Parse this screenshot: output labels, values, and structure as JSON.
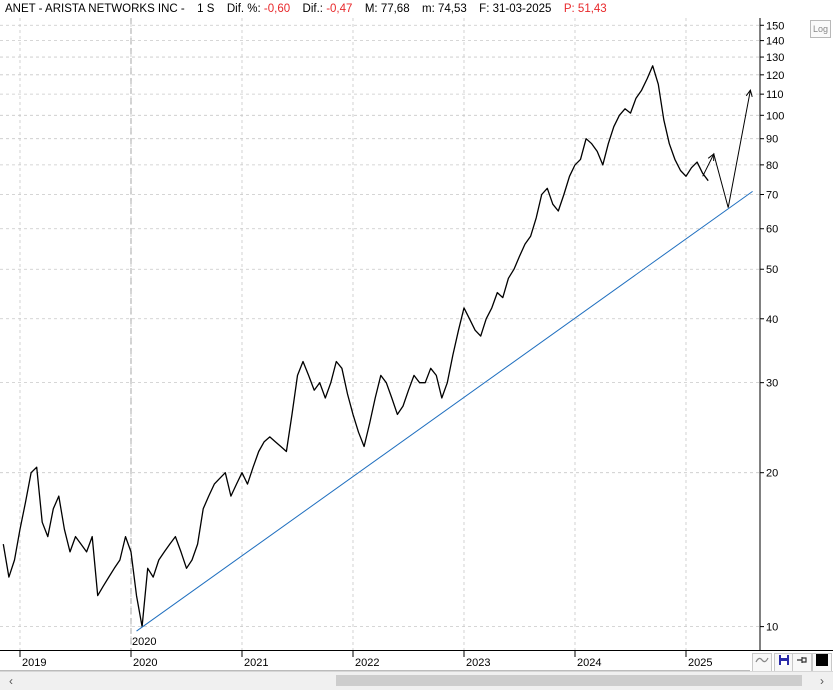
{
  "header": {
    "symbol": "ANET - ARISTA NETWORKS INC -",
    "period": "1 S",
    "dif_pct_label": "Dif. %:",
    "dif_pct_value": "-0,60",
    "dif_label": "Dif.:",
    "dif_value": "-0,47",
    "max_label": "M:",
    "max_value": "77,68",
    "min_label": "m:",
    "min_value": "74,53",
    "date_label": "F:",
    "date_value": "31-03-2025",
    "price_label": "P:",
    "price_value": "51,43"
  },
  "toolbar": {
    "log_label": "Log",
    "wave_icon": "wave-icon",
    "save_icon": "floppy-save-icon",
    "pin_icon": "pin-icon",
    "color_icon": "black-square-icon"
  },
  "scrollbar": {
    "left_arrow": "‹",
    "right_arrow": "›"
  },
  "colors": {
    "price": "#000000",
    "trendline": "#1f6fbf",
    "grid": "#c8c8c8",
    "negative": "#e8282b"
  },
  "chart_data": {
    "type": "line",
    "scale": "log",
    "ylim": [
      9,
      155
    ],
    "xlim": [
      2018.85,
      2025.7
    ],
    "grid": true,
    "yticks": [
      10,
      20,
      30,
      40,
      50,
      60,
      70,
      80,
      90,
      100,
      110,
      120,
      130,
      140,
      150
    ],
    "ytick_labels": [
      "10",
      "20",
      "30",
      "40",
      "50",
      "60",
      "70",
      "80",
      "90",
      "100",
      "110",
      "120",
      "130",
      "140",
      "150"
    ],
    "xticks": [
      2019,
      2020,
      2021,
      2022,
      2023,
      2024,
      2025
    ],
    "xtick_labels": [
      "2019",
      "2020",
      "2021",
      "2022",
      "2023",
      "2024",
      "2025"
    ],
    "marker": {
      "x": 2020.0,
      "label": "2020"
    },
    "series": [
      {
        "x": [
          2018.85,
          2018.9,
          2018.95,
          2019.0,
          2019.05,
          2019.1,
          2019.15,
          2019.2,
          2019.25,
          2019.3,
          2019.35,
          2019.4,
          2019.45,
          2019.5,
          2019.55,
          2019.6,
          2019.65,
          2019.7,
          2019.75,
          2019.8,
          2019.85,
          2019.9,
          2019.95,
          2020.0,
          2020.05,
          2020.1,
          2020.15,
          2020.2,
          2020.25,
          2020.3,
          2020.35,
          2020.4,
          2020.45,
          2020.5,
          2020.55,
          2020.6,
          2020.65,
          2020.7,
          2020.75,
          2020.8,
          2020.85,
          2020.9,
          2020.95,
          2021.0,
          2021.05,
          2021.1,
          2021.15,
          2021.2,
          2021.25,
          2021.3,
          2021.35,
          2021.4,
          2021.45,
          2021.5,
          2021.55,
          2021.6,
          2021.65,
          2021.7,
          2021.75,
          2021.8,
          2021.85,
          2021.9,
          2021.95,
          2022.0,
          2022.05,
          2022.1,
          2022.15,
          2022.2,
          2022.25,
          2022.3,
          2022.35,
          2022.4,
          2022.45,
          2022.5,
          2022.55,
          2022.6,
          2022.65,
          2022.7,
          2022.75,
          2022.8,
          2022.85,
          2022.9,
          2022.95,
          2023.0,
          2023.05,
          2023.1,
          2023.15,
          2023.2,
          2023.25,
          2023.3,
          2023.35,
          2023.4,
          2023.45,
          2023.5,
          2023.55,
          2023.6,
          2023.65,
          2023.7,
          2023.75,
          2023.8,
          2023.85,
          2023.9,
          2023.95,
          2024.0,
          2024.05,
          2024.1,
          2024.15,
          2024.2,
          2024.25,
          2024.3,
          2024.35,
          2024.4,
          2024.45,
          2024.5,
          2024.55,
          2024.6,
          2024.65,
          2024.7,
          2024.75,
          2024.8,
          2024.85,
          2024.9,
          2024.95,
          2025.0,
          2025.05,
          2025.1,
          2025.15,
          2025.2
        ],
        "values": [
          14.5,
          12.5,
          13.5,
          15.5,
          17.5,
          20.0,
          20.5,
          16.0,
          15.0,
          17.0,
          18.0,
          15.5,
          14.0,
          15.0,
          14.5,
          14.0,
          15.0,
          11.5,
          12.0,
          12.5,
          13.0,
          13.5,
          15.0,
          14.0,
          11.5,
          10.0,
          13.0,
          12.5,
          13.5,
          14.0,
          14.5,
          15.0,
          14.0,
          13.0,
          13.5,
          14.5,
          17.0,
          18.0,
          19.0,
          19.5,
          20.0,
          18.0,
          19.0,
          20.0,
          19.0,
          20.5,
          22.0,
          23.0,
          23.5,
          23.0,
          22.5,
          22.0,
          26.0,
          31.0,
          33.0,
          31.0,
          29.0,
          30.0,
          28.0,
          30.0,
          33.0,
          32.0,
          28.5,
          26.0,
          24.0,
          22.5,
          25.0,
          28.0,
          31.0,
          30.0,
          28.0,
          26.0,
          27.0,
          29.0,
          31.0,
          30.0,
          30.0,
          32.0,
          31.0,
          28.0,
          30.0,
          34.0,
          38.0,
          42.0,
          40.0,
          38.0,
          37.0,
          40.0,
          42.0,
          45.0,
          44.0,
          48.0,
          50.0,
          53.0,
          56.0,
          58.0,
          63.0,
          70.0,
          72.0,
          67.0,
          65.0,
          70.0,
          76.0,
          80.0,
          82.0,
          90.0,
          88.0,
          85.0,
          80.0,
          88.0,
          95.0,
          100.0,
          103.0,
          101.0,
          108.0,
          112.0,
          118.0,
          125.0,
          115.0,
          98.0,
          88.0,
          82.0,
          78.0,
          76.0,
          79.0,
          81.0,
          77.0,
          74.5
        ]
      }
    ],
    "trendline": {
      "x": [
        2020.05,
        2025.6
      ],
      "y": [
        9.8,
        71.0
      ]
    },
    "projection": {
      "x": [
        2025.15,
        2025.25,
        2025.38,
        2025.58
      ],
      "y": [
        76.0,
        84.0,
        66.0,
        112.0
      ]
    }
  }
}
